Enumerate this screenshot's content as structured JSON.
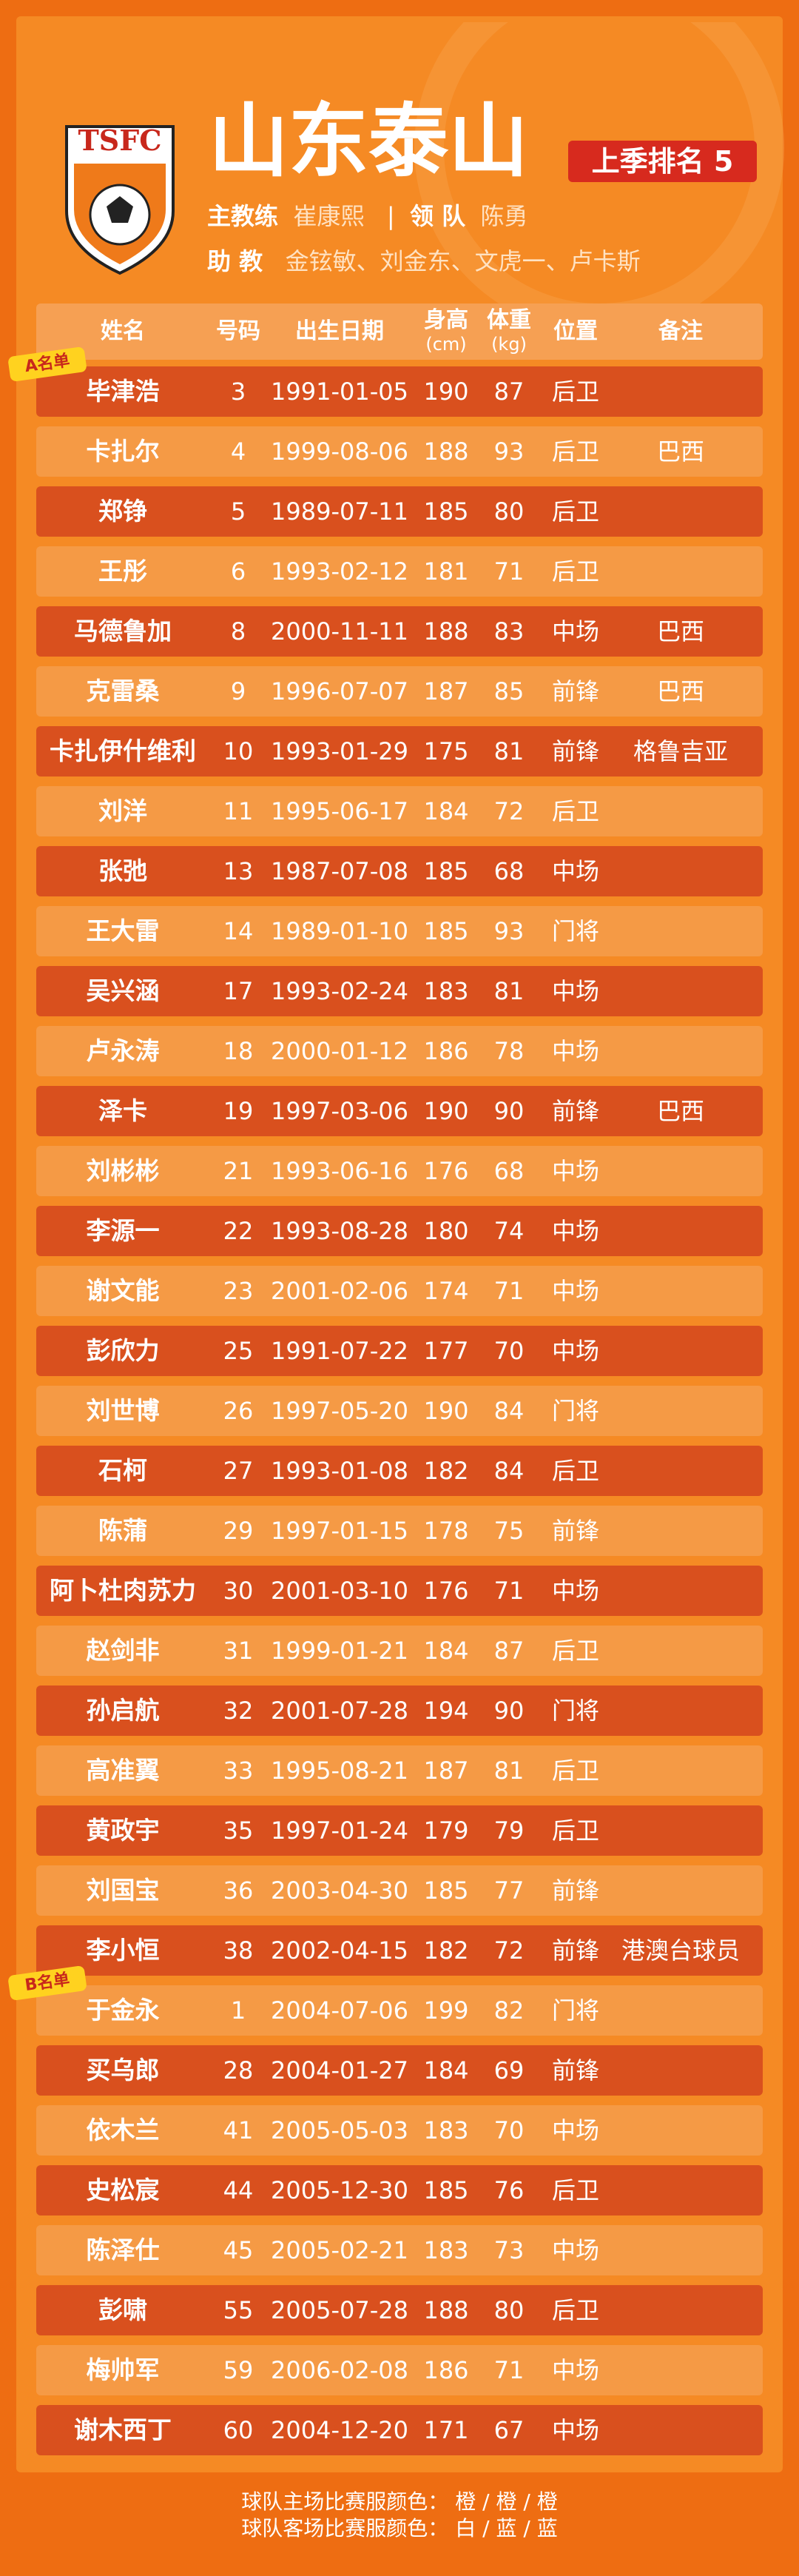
{
  "logo": {
    "text": "TSFC"
  },
  "header": {
    "title": "山东泰山",
    "rank_label": "上季排名",
    "rank": 5,
    "coach_label": "主教练",
    "coach": "崔康熙",
    "leader_label": "领 队",
    "leader": "陈勇",
    "assistants_label": "助 教",
    "assistants": "金铉敏、刘金东、文虎一、卢卡斯"
  },
  "table": {
    "columns": [
      {
        "label": "姓名"
      },
      {
        "label": "号码"
      },
      {
        "label": "出生日期"
      },
      {
        "label": "身高",
        "unit": "(cm)"
      },
      {
        "label": "体重",
        "unit": "(kg)"
      },
      {
        "label": "位置"
      },
      {
        "label": "备注"
      }
    ],
    "groups": [
      {
        "label": "A名单",
        "start": 0
      },
      {
        "label": "B名单",
        "start": 27
      }
    ],
    "rows": [
      [
        "毕津浩",
        3,
        "1991-01-05",
        190,
        87,
        "后卫",
        ""
      ],
      [
        "卡扎尔",
        4,
        "1999-08-06",
        188,
        93,
        "后卫",
        "巴西"
      ],
      [
        "郑铮",
        5,
        "1989-07-11",
        185,
        80,
        "后卫",
        ""
      ],
      [
        "王彤",
        6,
        "1993-02-12",
        181,
        71,
        "后卫",
        ""
      ],
      [
        "马德鲁加",
        8,
        "2000-11-11",
        188,
        83,
        "中场",
        "巴西"
      ],
      [
        "克雷桑",
        9,
        "1996-07-07",
        187,
        85,
        "前锋",
        "巴西"
      ],
      [
        "卡扎伊什维利",
        10,
        "1993-01-29",
        175,
        81,
        "前锋",
        "格鲁吉亚"
      ],
      [
        "刘洋",
        11,
        "1995-06-17",
        184,
        72,
        "后卫",
        ""
      ],
      [
        "张弛",
        13,
        "1987-07-08",
        185,
        68,
        "中场",
        ""
      ],
      [
        "王大雷",
        14,
        "1989-01-10",
        185,
        93,
        "门将",
        ""
      ],
      [
        "吴兴涵",
        17,
        "1993-02-24",
        183,
        81,
        "中场",
        ""
      ],
      [
        "卢永涛",
        18,
        "2000-01-12",
        186,
        78,
        "中场",
        ""
      ],
      [
        "泽卡",
        19,
        "1997-03-06",
        190,
        90,
        "前锋",
        "巴西"
      ],
      [
        "刘彬彬",
        21,
        "1993-06-16",
        176,
        68,
        "中场",
        ""
      ],
      [
        "李源一",
        22,
        "1993-08-28",
        180,
        74,
        "中场",
        ""
      ],
      [
        "谢文能",
        23,
        "2001-02-06",
        174,
        71,
        "中场",
        ""
      ],
      [
        "彭欣力",
        25,
        "1991-07-22",
        177,
        70,
        "中场",
        ""
      ],
      [
        "刘世博",
        26,
        "1997-05-20",
        190,
        84,
        "门将",
        ""
      ],
      [
        "石柯",
        27,
        "1993-01-08",
        182,
        84,
        "后卫",
        ""
      ],
      [
        "陈蒲",
        29,
        "1997-01-15",
        178,
        75,
        "前锋",
        ""
      ],
      [
        "阿卜杜肉苏力",
        30,
        "2001-03-10",
        176,
        71,
        "中场",
        ""
      ],
      [
        "赵剑非",
        31,
        "1999-01-21",
        184,
        87,
        "后卫",
        ""
      ],
      [
        "孙启航",
        32,
        "2001-07-28",
        194,
        90,
        "门将",
        ""
      ],
      [
        "高准翼",
        33,
        "1995-08-21",
        187,
        81,
        "后卫",
        ""
      ],
      [
        "黄政宇",
        35,
        "1997-01-24",
        179,
        79,
        "后卫",
        ""
      ],
      [
        "刘国宝",
        36,
        "2003-04-30",
        185,
        77,
        "前锋",
        ""
      ],
      [
        "李小恒",
        38,
        "2002-04-15",
        182,
        72,
        "前锋",
        "港澳台球员"
      ],
      [
        "于金永",
        1,
        "2004-07-06",
        199,
        82,
        "门将",
        ""
      ],
      [
        "买乌郎",
        28,
        "2004-01-27",
        184,
        69,
        "前锋",
        ""
      ],
      [
        "依木兰",
        41,
        "2005-05-03",
        183,
        70,
        "中场",
        ""
      ],
      [
        "史松宸",
        44,
        "2005-12-30",
        185,
        76,
        "后卫",
        ""
      ],
      [
        "陈泽仕",
        45,
        "2005-02-21",
        183,
        73,
        "中场",
        ""
      ],
      [
        "彭啸",
        55,
        "2005-07-28",
        188,
        80,
        "后卫",
        ""
      ],
      [
        "梅帅军",
        59,
        "2006-02-08",
        186,
        71,
        "中场",
        ""
      ],
      [
        "谢木西丁",
        60,
        "2004-12-20",
        171,
        67,
        "中场",
        ""
      ]
    ]
  },
  "footer": {
    "home_label": "球队主场比赛服颜色：",
    "home_colors": "橙 / 橙 / 橙",
    "away_label": "球队客场比赛服颜色：",
    "away_colors": "白 / 蓝 / 蓝"
  }
}
